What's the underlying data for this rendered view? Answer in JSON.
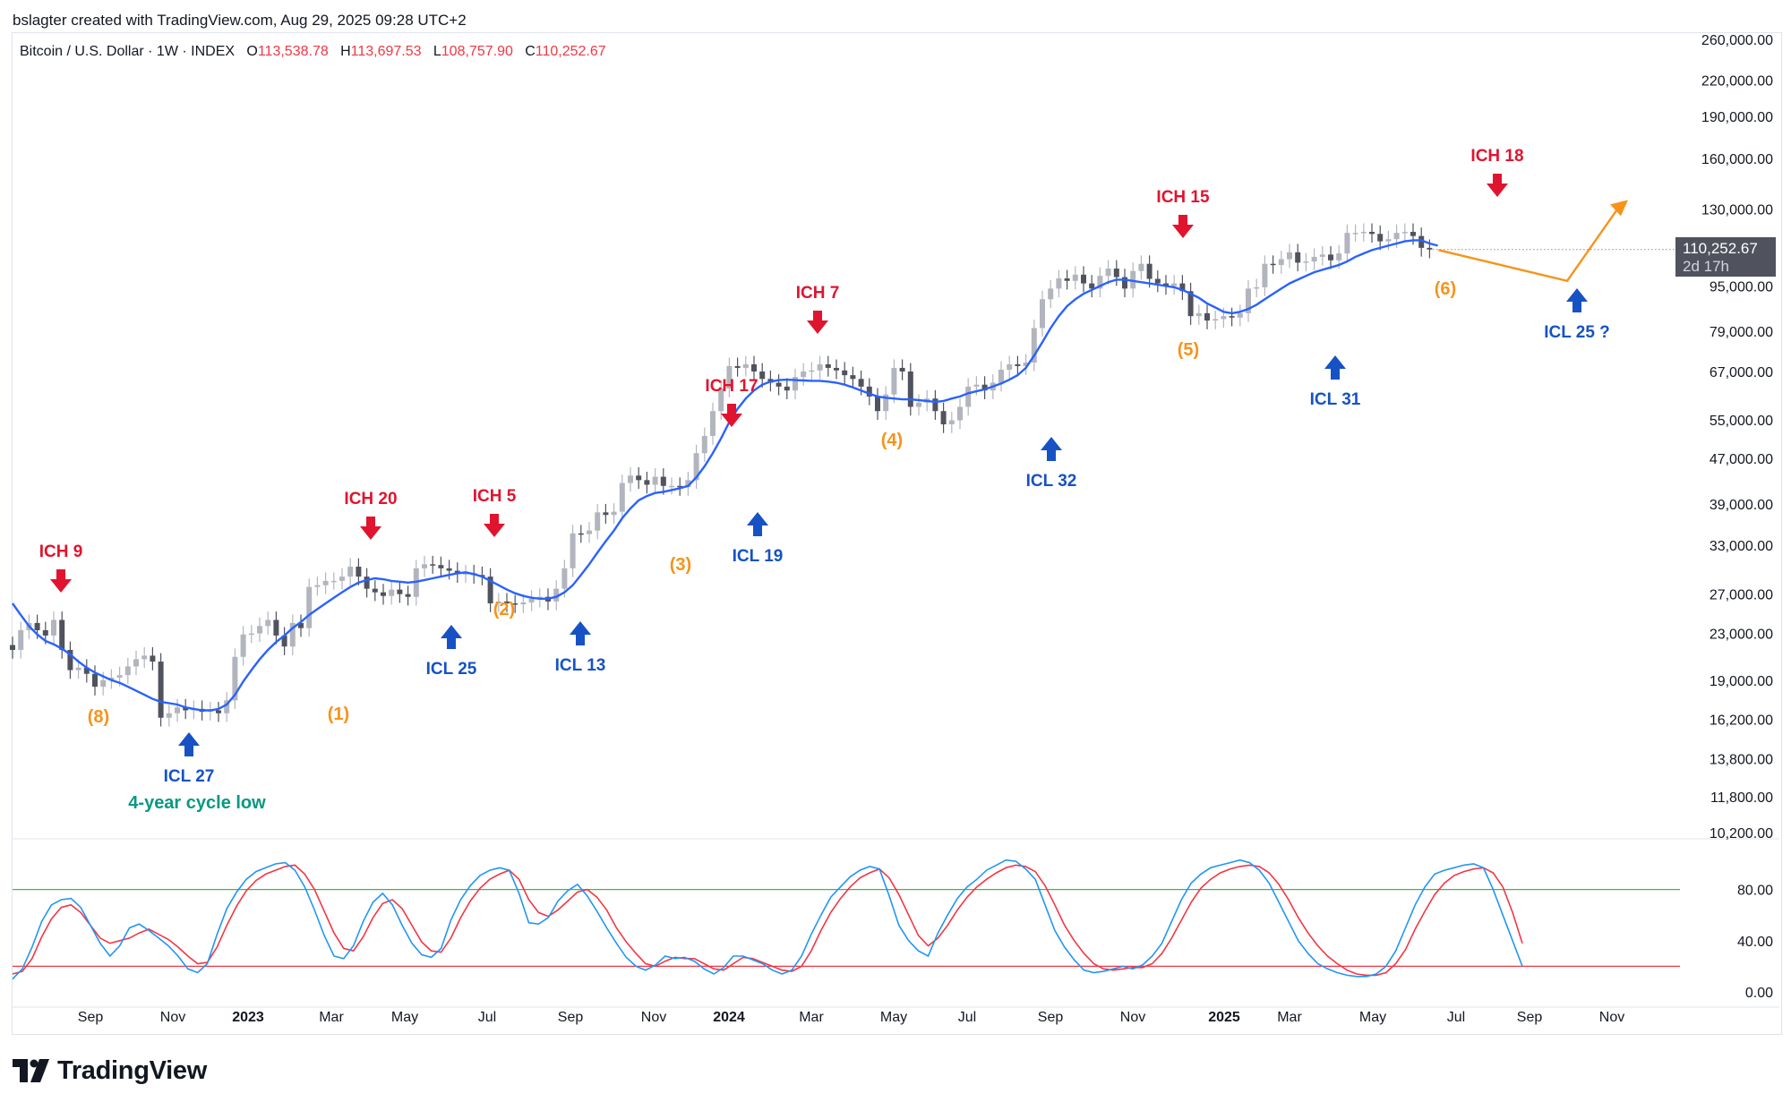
{
  "credit": "bslagter created with TradingView.com, Aug 29, 2025 09:28 UTC+2",
  "symbol": {
    "name": "Bitcoin / U.S. Dollar · 1W · INDEX",
    "o_label": "O",
    "o": "113,538.78",
    "h_label": "H",
    "h": "113,697.53",
    "l_label": "L",
    "l": "108,757.90",
    "c_label": "C",
    "c": "110,252.67"
  },
  "price_badge": {
    "price": "110,252.67",
    "countdown": "2d 17h"
  },
  "brand": "TradingView",
  "colors": {
    "up_candle": "#b2b5be",
    "down_candle": "#50535e",
    "moving_average": "#2962ff",
    "ich_marker": "#e0142e",
    "icl_marker": "#1652c4",
    "count_label": "#f7931a",
    "cycle_label": "#089981",
    "stoch_k": "#2196f3",
    "stoch_d": "#f23645",
    "level_80": "#4caf50",
    "level_20": "#f23645"
  },
  "chart_data": [
    {
      "type": "candlestick",
      "ylabel": "",
      "price_scale": "log",
      "ylim": [
        10200,
        260000
      ],
      "price_ticks": [
        "260,000.00",
        "220,000.00",
        "190,000.00",
        "160,000.00",
        "130,000.00",
        "95,000.00",
        "79,000.00",
        "67,000.00",
        "55,000.00",
        "47,000.00",
        "39,000.00",
        "33,000.00",
        "27,000.00",
        "23,000.00",
        "19,000.00",
        "16,200.00",
        "13,800.00",
        "11,800.00",
        "10,200.00"
      ],
      "time_ticks": [
        {
          "label": "Sep",
          "bold": false
        },
        {
          "label": "Nov",
          "bold": false
        },
        {
          "label": "2023",
          "bold": true
        },
        {
          "label": "Mar",
          "bold": false
        },
        {
          "label": "May",
          "bold": false
        },
        {
          "label": "Jul",
          "bold": false
        },
        {
          "label": "Sep",
          "bold": false
        },
        {
          "label": "Nov",
          "bold": false
        },
        {
          "label": "2024",
          "bold": true
        },
        {
          "label": "Mar",
          "bold": false
        },
        {
          "label": "May",
          "bold": false
        },
        {
          "label": "Jul",
          "bold": false
        },
        {
          "label": "Sep",
          "bold": false
        },
        {
          "label": "Nov",
          "bold": false
        },
        {
          "label": "2025",
          "bold": true
        },
        {
          "label": "Mar",
          "bold": false
        },
        {
          "label": "May",
          "bold": false
        },
        {
          "label": "Jul",
          "bold": false
        },
        {
          "label": "Sep",
          "bold": false
        },
        {
          "label": "Nov",
          "bold": false
        }
      ],
      "series": [
        {
          "name": "price",
          "kind": "weekly close (approx.)",
          "values": [
            21500,
            23300,
            24000,
            23300,
            22800,
            24300,
            21500,
            19800,
            20000,
            19500,
            18500,
            19000,
            19200,
            19400,
            20100,
            20700,
            21000,
            20500,
            16300,
            16600,
            17000,
            16800,
            16900,
            16700,
            16800,
            16600,
            17500,
            20900,
            22900,
            23000,
            23700,
            24300,
            22800,
            21800,
            24000,
            23500,
            27800,
            28000,
            28500,
            28500,
            29000,
            30200,
            29000,
            27600,
            27200,
            26800,
            27500,
            27000,
            26700,
            30000,
            30500,
            30400,
            30000,
            29700,
            29300,
            29400,
            29200,
            29000,
            26000,
            26200,
            26000,
            25900,
            26100,
            26500,
            26700,
            26200,
            27600,
            30000,
            34600,
            34500,
            35000,
            37700,
            37300,
            37800,
            42500,
            43800,
            43000,
            42200,
            43600,
            42000,
            42000,
            41800,
            43000,
            48000,
            51500,
            57000,
            62500,
            68500,
            68000,
            69000,
            67000,
            65000,
            64000,
            63000,
            62000,
            65500,
            67000,
            67300,
            69000,
            68000,
            67300,
            66000,
            65000,
            63000,
            60500,
            57000,
            61000,
            68000,
            67000,
            58000,
            59000,
            60000,
            57000,
            54000,
            54900,
            58000,
            63000,
            63500,
            62000,
            64000,
            67500,
            69000,
            68500,
            69500,
            80000,
            90000,
            94000,
            98000,
            97000,
            99500,
            96000,
            94000,
            99000,
            102000,
            98500,
            94000,
            101000,
            104000,
            97800,
            96000,
            95000,
            96000,
            93000,
            84000,
            85000,
            82500,
            83000,
            84000,
            83500,
            85000,
            94000,
            94500,
            104000,
            103500,
            106000,
            109000,
            104500,
            105000,
            107000,
            108000,
            105500,
            108500,
            118000,
            118000,
            118500,
            117500,
            114000,
            115000,
            118000,
            118500,
            116500,
            111000,
            110250
          ]
        },
        {
          "name": "moving_average",
          "kind": "trend line",
          "values": [
            26000,
            24800,
            23700,
            22900,
            22300,
            22000,
            21600,
            21100,
            20500,
            20000,
            19600,
            19300,
            19000,
            18800,
            18500,
            18200,
            17900,
            17600,
            17400,
            17300,
            17200,
            17000,
            16900,
            16800,
            16800,
            16900,
            17200,
            17900,
            18900,
            19800,
            20700,
            21500,
            22200,
            22800,
            23500,
            24100,
            24800,
            25400,
            26000,
            26600,
            27200,
            27800,
            28300,
            28600,
            28800,
            28700,
            28500,
            28400,
            28300,
            28400,
            28600,
            28800,
            29000,
            29200,
            29400,
            29500,
            29300,
            29000,
            28500,
            28000,
            27500,
            27100,
            26800,
            26600,
            26500,
            26500,
            26700,
            27200,
            28000,
            29200,
            30500,
            32000,
            33500,
            35000,
            36800,
            38300,
            39600,
            40300,
            40800,
            41000,
            41300,
            41600,
            42000,
            43500,
            45500,
            48000,
            51000,
            54500,
            57500,
            60000,
            62000,
            63500,
            64300,
            64700,
            64800,
            64700,
            64600,
            64500,
            64500,
            64300,
            64000,
            63500,
            62800,
            62000,
            61200,
            60500,
            60200,
            60000,
            59800,
            59800,
            59600,
            59400,
            59200,
            59400,
            60000,
            60500,
            61300,
            61800,
            62300,
            63000,
            63800,
            64800,
            66000,
            68000,
            71500,
            75500,
            80000,
            84000,
            87500,
            90000,
            92000,
            93500,
            95000,
            96500,
            97500,
            97500,
            97000,
            96500,
            96000,
            95500,
            95000,
            94500,
            93500,
            92000,
            90500,
            88500,
            87000,
            85500,
            85000,
            85500,
            86500,
            88000,
            90000,
            92000,
            94000,
            96000,
            97500,
            99000,
            100500,
            101500,
            102500,
            103500,
            105000,
            107000,
            108500,
            110000,
            111000,
            112000,
            113000,
            114000,
            114500,
            114500,
            113000,
            112000
          ]
        },
        {
          "name": "stoch_k",
          "kind": "oscillator 0-100",
          "values": [
            10,
            18,
            35,
            55,
            68,
            72,
            73,
            66,
            52,
            38,
            28,
            36,
            50,
            53,
            48,
            42,
            36,
            28,
            18,
            15,
            22,
            45,
            65,
            78,
            88,
            94,
            97,
            100,
            101,
            95,
            82,
            64,
            44,
            28,
            26,
            36,
            55,
            70,
            77,
            68,
            52,
            38,
            29,
            27,
            34,
            56,
            72,
            83,
            91,
            95,
            97,
            95,
            77,
            54,
            53,
            58,
            71,
            79,
            84,
            75,
            63,
            50,
            38,
            27,
            20,
            17,
            21,
            28,
            26,
            27,
            24,
            18,
            14,
            19,
            28,
            28,
            25,
            22,
            17,
            14,
            17,
            28,
            45,
            60,
            74,
            82,
            90,
            95,
            98,
            96,
            75,
            52,
            40,
            32,
            28,
            46,
            60,
            73,
            82,
            88,
            95,
            99,
            103,
            102,
            96,
            88,
            68,
            48,
            35,
            25,
            17,
            15,
            16,
            18,
            20,
            18,
            21,
            28,
            38,
            55,
            72,
            85,
            92,
            97,
            99,
            101,
            103,
            101,
            95,
            85,
            70,
            55,
            40,
            30,
            22,
            18,
            15,
            13,
            12,
            12,
            14,
            20,
            32,
            50,
            68,
            82,
            92,
            95,
            97,
            99,
            100,
            97,
            80,
            60,
            40,
            20
          ]
        },
        {
          "name": "stoch_d",
          "kind": "oscillator 0-100",
          "values": [
            14,
            16,
            26,
            43,
            57,
            66,
            68,
            62,
            52,
            42,
            38,
            40,
            42,
            46,
            49,
            45,
            41,
            35,
            28,
            22,
            23,
            35,
            52,
            67,
            79,
            87,
            92,
            95,
            98,
            99,
            92,
            80,
            63,
            46,
            34,
            32,
            43,
            58,
            69,
            72,
            65,
            52,
            39,
            32,
            31,
            42,
            58,
            71,
            81,
            88,
            92,
            95,
            88,
            72,
            62,
            59,
            64,
            71,
            78,
            80,
            74,
            64,
            50,
            39,
            30,
            22,
            20,
            24,
            27,
            26,
            26,
            22,
            18,
            17,
            22,
            27,
            26,
            23,
            20,
            17,
            16,
            20,
            32,
            48,
            62,
            73,
            82,
            89,
            93,
            96,
            89,
            76,
            60,
            44,
            36,
            42,
            52,
            64,
            74,
            82,
            88,
            93,
            97,
            99,
            98,
            94,
            83,
            68,
            52,
            40,
            30,
            22,
            18,
            17,
            18,
            19,
            19,
            22,
            30,
            42,
            56,
            70,
            81,
            88,
            93,
            96,
            98,
            99,
            98,
            93,
            84,
            72,
            58,
            46,
            36,
            28,
            22,
            17,
            14,
            13,
            13,
            15,
            22,
            33,
            49,
            63,
            76,
            85,
            91,
            94,
            96,
            97,
            93,
            82,
            62,
            38
          ]
        }
      ],
      "oscillator_ticks": [
        "80.00",
        "40.00",
        "0.00"
      ],
      "annotations": [
        {
          "label": "ICH 9",
          "type": "ich"
        },
        {
          "label": "ICH 20",
          "type": "ich"
        },
        {
          "label": "ICH 5",
          "type": "ich"
        },
        {
          "label": "ICH 17",
          "type": "ich"
        },
        {
          "label": "ICH 7",
          "type": "ich"
        },
        {
          "label": "ICH 15",
          "type": "ich"
        },
        {
          "label": "ICH 18",
          "type": "ich"
        },
        {
          "label": "ICL 27",
          "type": "icl"
        },
        {
          "label": "ICL 25",
          "type": "icl"
        },
        {
          "label": "ICL 13",
          "type": "icl"
        },
        {
          "label": "ICL 19",
          "type": "icl"
        },
        {
          "label": "ICL 32",
          "type": "icl"
        },
        {
          "label": "ICL 31",
          "type": "icl"
        },
        {
          "label": "ICL 25 ?",
          "type": "icl"
        },
        {
          "label": "(8)",
          "type": "count"
        },
        {
          "label": "(1)",
          "type": "count"
        },
        {
          "label": "(2)",
          "type": "count"
        },
        {
          "label": "(3)",
          "type": "count"
        },
        {
          "label": "(4)",
          "type": "count"
        },
        {
          "label": "(5)",
          "type": "count"
        },
        {
          "label": "(6)",
          "type": "count"
        },
        {
          "label": "4-year cycle low",
          "type": "cycle"
        }
      ],
      "projection": {
        "type": "path",
        "description": "expected dip to next cycle low then rise"
      }
    }
  ]
}
